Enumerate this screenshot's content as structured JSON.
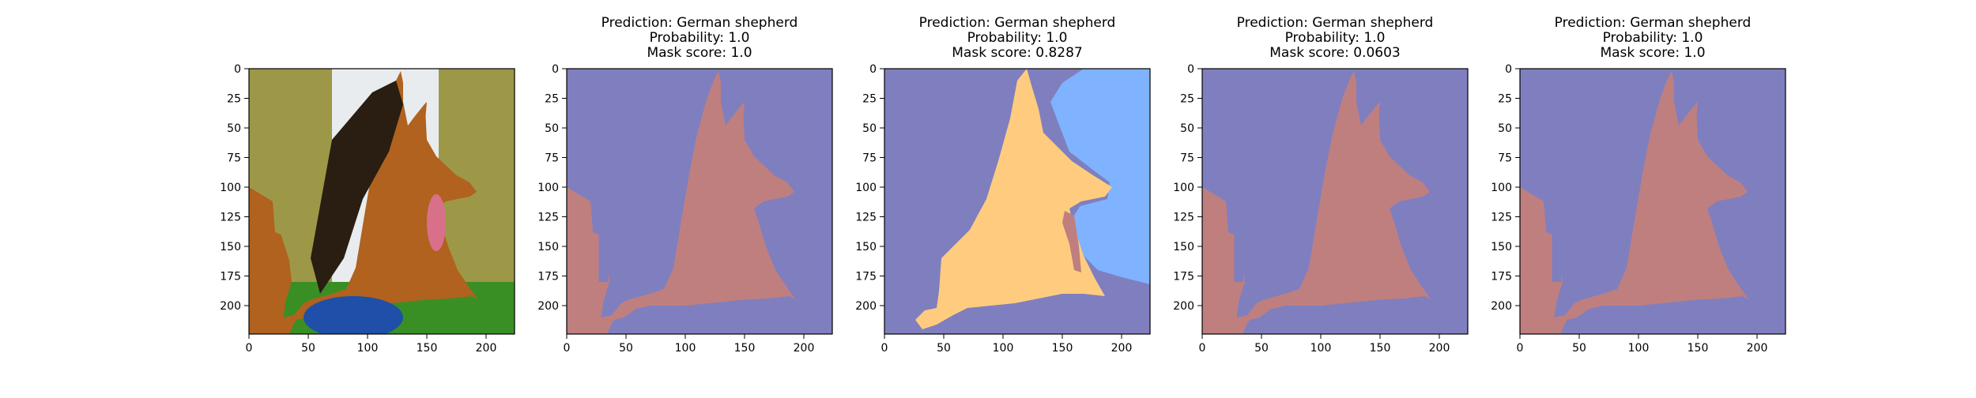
{
  "colors": {
    "background": "#7f7fbf",
    "dog": "#bf7f7f",
    "yellow_segment": "#ffcc7f",
    "blue_segment": "#7fb2ff",
    "sky": "#e8ecef",
    "foliage": "#8f8a2a",
    "grass": "#3a8f24",
    "ball": "#1f4fa8",
    "fur_dark": "#2a1d12",
    "fur_tan": "#b0621e",
    "tongue": "#d9708a"
  },
  "chart_data": [
    {
      "type": "image",
      "content": "photo",
      "title_lines": [],
      "xlim": [
        0,
        224
      ],
      "ylim": [
        224,
        0
      ],
      "xticks": [
        0,
        50,
        100,
        150,
        200
      ],
      "yticks": [
        0,
        25,
        50,
        75,
        100,
        125,
        150,
        175,
        200
      ]
    },
    {
      "type": "image",
      "content": "mask",
      "title_lines": [
        "Prediction: German shepherd",
        "Probability: 1.0",
        "Mask score: 1.0"
      ],
      "xlim": [
        0,
        224
      ],
      "ylim": [
        224,
        0
      ],
      "xticks": [
        0,
        50,
        100,
        150,
        200
      ],
      "yticks": [
        0,
        25,
        50,
        75,
        100,
        125,
        150,
        175,
        200
      ]
    },
    {
      "type": "image",
      "content": "segments",
      "title_lines": [
        "Prediction: German shepherd",
        "Probability: 1.0",
        "Mask score: 0.8287"
      ],
      "xlim": [
        0,
        224
      ],
      "ylim": [
        224,
        0
      ],
      "xticks": [
        0,
        50,
        100,
        150,
        200
      ],
      "yticks": [
        0,
        25,
        50,
        75,
        100,
        125,
        150,
        175,
        200
      ]
    },
    {
      "type": "image",
      "content": "mask",
      "title_lines": [
        "Prediction: German shepherd",
        "Probability: 1.0",
        "Mask score: 0.0603"
      ],
      "xlim": [
        0,
        224
      ],
      "ylim": [
        224,
        0
      ],
      "xticks": [
        0,
        50,
        100,
        150,
        200
      ],
      "yticks": [
        0,
        25,
        50,
        75,
        100,
        125,
        150,
        175,
        200
      ]
    },
    {
      "type": "image",
      "content": "mask",
      "title_lines": [
        "Prediction: German shepherd",
        "Probability: 1.0",
        "Mask score: 1.0"
      ],
      "xlim": [
        0,
        224
      ],
      "ylim": [
        224,
        0
      ],
      "xticks": [
        0,
        50,
        100,
        150,
        200
      ],
      "yticks": [
        0,
        25,
        50,
        75,
        100,
        125,
        150,
        175,
        200
      ]
    }
  ]
}
